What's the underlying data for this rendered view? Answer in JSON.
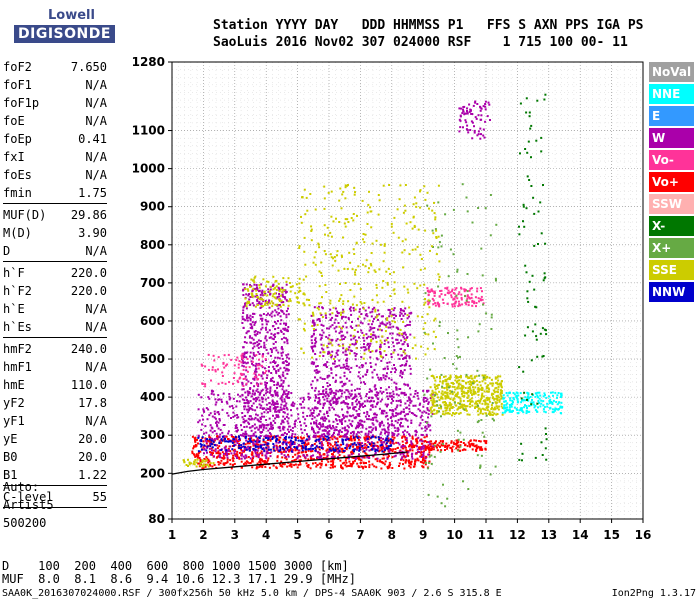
{
  "logo": {
    "top": "Lowell",
    "bottom": "DIGISONDE"
  },
  "header": {
    "line1": "Station YYYY DAY   DDD HHMMSS P1   FFS S AXN PPS IGA PS",
    "line2": "SaoLuis 2016 Nov02 307 024000 RSF    1 715 100 00- 11"
  },
  "params": [
    {
      "group": [
        {
          "label": "foF2",
          "value": "7.650"
        },
        {
          "label": "foF1",
          "value": "N/A"
        },
        {
          "label": "foF1p",
          "value": "N/A"
        },
        {
          "label": "foE",
          "value": "N/A"
        },
        {
          "label": "foEp",
          "value": "0.41"
        },
        {
          "label": "fxI",
          "value": "N/A"
        },
        {
          "label": "foEs",
          "value": "N/A"
        },
        {
          "label": "fmin",
          "value": "1.75"
        }
      ]
    },
    {
      "group": [
        {
          "label": "MUF(D)",
          "value": "29.86"
        },
        {
          "label": "M(D)",
          "value": "3.90"
        },
        {
          "label": "D",
          "value": "N/A"
        }
      ]
    },
    {
      "group": [
        {
          "label": "h`F",
          "value": "220.0"
        },
        {
          "label": "h`F2",
          "value": "220.0"
        },
        {
          "label": "h`E",
          "value": "N/A"
        },
        {
          "label": "h`Es",
          "value": "N/A"
        }
      ]
    },
    {
      "group": [
        {
          "label": "hmF2",
          "value": "240.0"
        },
        {
          "label": "hmF1",
          "value": "N/A"
        },
        {
          "label": "hmE",
          "value": "110.0"
        },
        {
          "label": "yF2",
          "value": "17.8"
        },
        {
          "label": "yF1",
          "value": "N/A"
        },
        {
          "label": "yE",
          "value": "20.0"
        },
        {
          "label": "B0",
          "value": "20.0"
        },
        {
          "label": "B1",
          "value": "1.22"
        }
      ]
    },
    {
      "group": [
        {
          "label": "C-level",
          "value": "55"
        }
      ]
    }
  ],
  "misc": {
    "line1": "Auto:",
    "line2": "Artist5",
    "line3": "500200"
  },
  "footer": {
    "row1": "D    100  200  400  600  800 1000 1500 3000 [km]",
    "row2": "MUF  8.0  8.1  8.6  9.4 10.6 12.3 17.1 29.9 [MHz]",
    "file": "SAA0K_2016307024000.RSF / 300fx256h 50 kHz 5.0 km / DPS-4 SAA0K 903 / 2.6 S 315.8 E",
    "version": "Ion2Png 1.3.17"
  },
  "legend": [
    {
      "label": "NoVal",
      "color": "#a0a0a0"
    },
    {
      "label": "NNE",
      "color": "#00ffff"
    },
    {
      "label": "E",
      "color": "#3399ff"
    },
    {
      "label": "W",
      "color": "#aa00aa"
    },
    {
      "label": "Vo-",
      "color": "#ff3399"
    },
    {
      "label": "Vo+",
      "color": "#ff0000"
    },
    {
      "label": "SSW",
      "color": "#ffb0b0"
    },
    {
      "label": "X-",
      "color": "#007700"
    },
    {
      "label": "X+",
      "color": "#66aa44"
    },
    {
      "label": "SSE",
      "color": "#cccc00"
    },
    {
      "label": "NNW",
      "color": "#0000cc"
    }
  ],
  "chart_data": {
    "type": "scatter",
    "xlabel": "",
    "ylabel": "",
    "xlim": [
      1,
      16
    ],
    "ylim": [
      80,
      1280
    ],
    "x_ticks": [
      1,
      2,
      3,
      4,
      5,
      6,
      7,
      8,
      9,
      10,
      11,
      12,
      13,
      14,
      15,
      16
    ],
    "y_ticks": [
      80,
      200,
      300,
      400,
      500,
      600,
      700,
      800,
      900,
      1000,
      1100,
      1280
    ],
    "grid": true,
    "trace": {
      "x": [
        1.0,
        1.5,
        2.0,
        3.0,
        4.0,
        5.0,
        6.0,
        7.0,
        8.0,
        8.5
      ],
      "y": [
        198,
        205,
        210,
        217,
        224,
        231,
        238,
        245,
        252,
        256
      ]
    },
    "clusters": [
      {
        "series": "Vo+",
        "x": [
          1.6,
          9.2
        ],
        "y": [
          215,
          300
        ],
        "density": 0.9
      },
      {
        "series": "Vo+",
        "x": [
          9.0,
          11.0
        ],
        "y": [
          260,
          290
        ],
        "density": 0.7
      },
      {
        "series": "W",
        "x": [
          1.8,
          9.3
        ],
        "y": [
          240,
          420
        ],
        "density": 0.5
      },
      {
        "series": "W",
        "x": [
          3.2,
          4.7
        ],
        "y": [
          300,
          700
        ],
        "density": 0.35
      },
      {
        "series": "W",
        "x": [
          5.4,
          8.6
        ],
        "y": [
          300,
          640
        ],
        "density": 0.25
      },
      {
        "series": "W",
        "x": [
          10.1,
          11.1
        ],
        "y": [
          1080,
          1180
        ],
        "density": 0.25
      },
      {
        "series": "SSE",
        "x": [
          9.2,
          11.5
        ],
        "y": [
          355,
          460
        ],
        "density": 0.7
      },
      {
        "series": "SSE",
        "x": [
          3.3,
          5.2
        ],
        "y": [
          640,
          720
        ],
        "density": 0.25
      },
      {
        "series": "SSE",
        "x": [
          1.3,
          2.3
        ],
        "y": [
          220,
          240
        ],
        "density": 0.6
      },
      {
        "series": "NNE",
        "x": [
          11.5,
          13.4
        ],
        "y": [
          360,
          415
        ],
        "density": 0.6
      },
      {
        "series": "NNW",
        "x": [
          1.8,
          8.0
        ],
        "y": [
          260,
          300
        ],
        "density": 0.3
      },
      {
        "series": "Vo-",
        "x": [
          9.1,
          10.9
        ],
        "y": [
          640,
          690
        ],
        "density": 0.45
      },
      {
        "series": "Vo-",
        "x": [
          1.9,
          4.0
        ],
        "y": [
          430,
          520
        ],
        "density": 0.15
      },
      {
        "series": "X-",
        "x": [
          12.0,
          12.9
        ],
        "y": [
          140,
          1200
        ],
        "density": 0.03
      },
      {
        "series": "X+",
        "x": [
          9.0,
          11.3
        ],
        "y": [
          100,
          1000
        ],
        "density": 0.02
      },
      {
        "series": "SSE",
        "x": [
          5.0,
          9.5
        ],
        "y": [
          500,
          960
        ],
        "density": 0.06
      }
    ]
  }
}
